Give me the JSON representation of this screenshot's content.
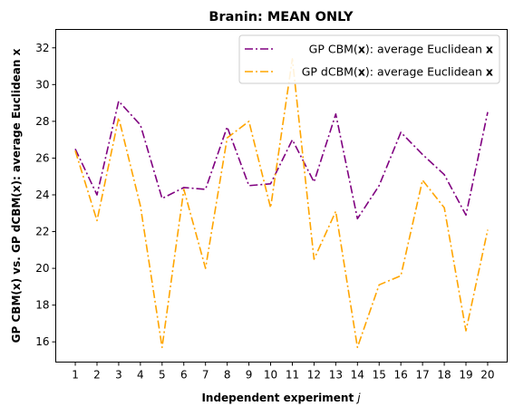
{
  "chart_data": {
    "type": "line",
    "title": "Branin: MEAN ONLY",
    "xlabel": "Independent experiment",
    "xlabel_var": "j",
    "ylabel": "GP CBM(x) vs. GP dCBM(x): average Euclidean x",
    "categories": [
      "1",
      "2",
      "3",
      "4",
      "5",
      "6",
      "7",
      "8",
      "9",
      "10",
      "11",
      "12",
      "13",
      "14",
      "15",
      "16",
      "17",
      "18",
      "19",
      "20"
    ],
    "x": [
      1,
      2,
      3,
      4,
      5,
      6,
      7,
      8,
      9,
      10,
      11,
      12,
      13,
      14,
      15,
      16,
      17,
      18,
      19,
      20
    ],
    "ylim": [
      14.9,
      33.0
    ],
    "xlim": [
      0.1,
      20.9
    ],
    "yticks": [
      16,
      18,
      20,
      22,
      24,
      26,
      28,
      30,
      32
    ],
    "legend_position": "top-right",
    "grid": false,
    "series": [
      {
        "name_pre": "GP CBM(",
        "name_bold": "x",
        "name_post": "): average Euclidean ",
        "name_tail": "x",
        "color": "#800080",
        "linestyle": "dashdot",
        "values": [
          26.5,
          24.0,
          29.1,
          27.8,
          23.8,
          24.4,
          24.3,
          27.7,
          24.5,
          24.6,
          27.0,
          24.7,
          28.4,
          22.7,
          24.5,
          27.4,
          26.2,
          25.1,
          22.9,
          28.5
        ]
      },
      {
        "name_pre": "GP dCBM(",
        "name_bold": "x",
        "name_post": "): average Euclidean ",
        "name_tail": "x",
        "color": "#FFA500",
        "linestyle": "dashdot",
        "values": [
          26.4,
          22.6,
          28.2,
          23.4,
          15.7,
          24.3,
          20.0,
          27.1,
          28.0,
          23.3,
          31.4,
          20.5,
          23.1,
          15.7,
          19.1,
          19.6,
          24.8,
          23.3,
          16.6,
          22.1
        ]
      }
    ]
  }
}
